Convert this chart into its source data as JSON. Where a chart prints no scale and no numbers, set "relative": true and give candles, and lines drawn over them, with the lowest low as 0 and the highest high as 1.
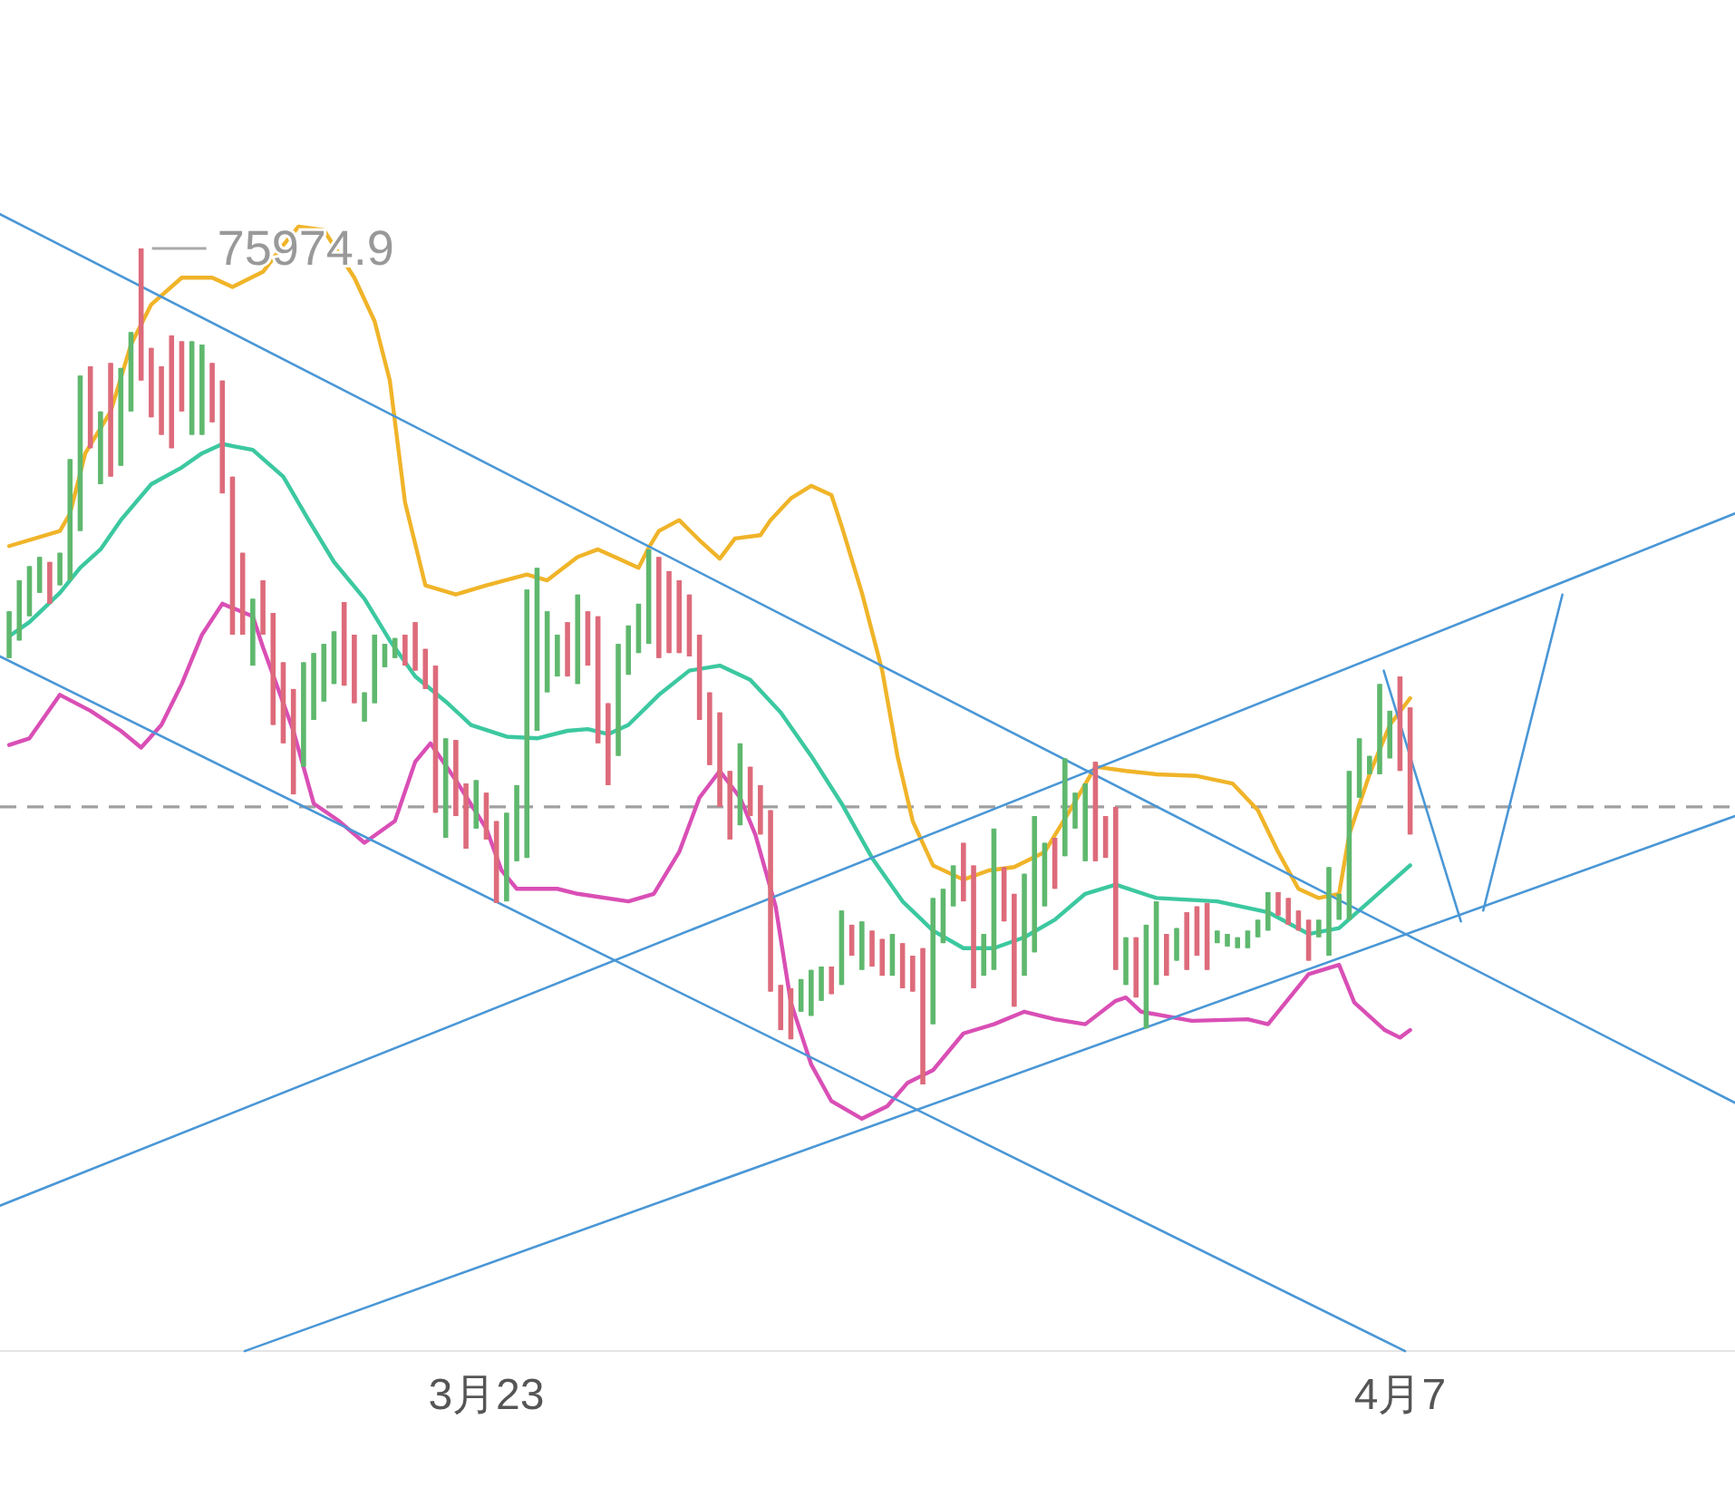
{
  "chart_data": {
    "type": "candlestick",
    "relative": true,
    "x": [
      "--03-15T04:00",
      "--03-15T08:00",
      "--03-15T12:00",
      "--03-15T16:00",
      "--03-15T20:00",
      "--03-16T00:00",
      "--03-16T04:00",
      "--03-16T08:00",
      "--03-16T12:00",
      "--03-16T16:00",
      "--03-16T20:00",
      "--03-17T00:00",
      "--03-17T04:00",
      "--03-17T08:00",
      "--03-17T12:00",
      "--03-17T16:00",
      "--03-17T20:00",
      "--03-18T00:00",
      "--03-18T04:00",
      "--03-18T08:00",
      "--03-18T12:00",
      "--03-18T16:00",
      "--03-18T20:00",
      "--03-19T00:00",
      "--03-19T04:00",
      "--03-19T08:00",
      "--03-19T12:00",
      "--03-19T16:00",
      "--03-19T20:00",
      "--03-20T00:00",
      "--03-20T04:00",
      "--03-20T08:00",
      "--03-20T12:00",
      "--03-20T16:00",
      "--03-20T20:00",
      "--03-21T00:00",
      "--03-21T04:00",
      "--03-21T08:00",
      "--03-21T12:00",
      "--03-21T16:00",
      "--03-21T20:00",
      "--03-22T00:00",
      "--03-22T04:00",
      "--03-22T08:00",
      "--03-22T12:00",
      "--03-22T16:00",
      "--03-22T20:00",
      "--03-23T00:00",
      "--03-23T04:00",
      "--03-23T08:00",
      "--03-23T12:00",
      "--03-23T16:00",
      "--03-23T20:00",
      "--03-24T00:00",
      "--03-24T04:00",
      "--03-24T08:00",
      "--03-24T12:00",
      "--03-24T16:00",
      "--03-24T20:00",
      "--03-25T00:00",
      "--03-25T04:00",
      "--03-25T08:00",
      "--03-25T12:00",
      "--03-25T16:00",
      "--03-25T20:00",
      "--03-26T00:00",
      "--03-26T04:00",
      "--03-26T08:00",
      "--03-26T12:00",
      "--03-26T16:00",
      "--03-26T20:00",
      "--03-27T00:00",
      "--03-27T04:00",
      "--03-27T08:00",
      "--03-27T12:00",
      "--03-27T16:00",
      "--03-27T20:00",
      "--03-28T00:00",
      "--03-28T04:00",
      "--03-28T08:00",
      "--03-28T12:00",
      "--03-28T16:00",
      "--03-28T20:00",
      "--03-29T00:00",
      "--03-29T04:00",
      "--03-29T08:00",
      "--03-29T12:00",
      "--03-29T16:00",
      "--03-29T20:00",
      "--03-30T00:00",
      "--03-30T04:00",
      "--03-30T08:00",
      "--03-30T12:00",
      "--03-30T16:00",
      "--03-30T20:00",
      "--03-31T00:00",
      "--03-31T04:00",
      "--03-31T08:00",
      "--03-31T12:00",
      "--03-31T16:00",
      "--03-31T20:00",
      "--04-01T00:00",
      "--04-01T04:00",
      "--04-01T08:00",
      "--04-01T12:00",
      "--04-01T16:00",
      "--04-01T20:00",
      "--04-02T00:00",
      "--04-02T04:00",
      "--04-02T08:00",
      "--04-02T12:00",
      "--04-02T16:00",
      "--04-02T20:00",
      "--04-03T00:00",
      "--04-03T04:00",
      "--04-03T08:00",
      "--04-03T12:00",
      "--04-03T16:00",
      "--04-03T20:00",
      "--04-04T00:00",
      "--04-04T04:00",
      "--04-04T08:00",
      "--04-04T12:00",
      "--04-04T16:00",
      "--04-04T20:00",
      "--04-05T00:00",
      "--04-05T04:00",
      "--04-05T08:00",
      "--04-05T12:00",
      "--04-05T16:00",
      "--04-05T20:00",
      "--04-06T00:00",
      "--04-06T04:00",
      "--04-06T08:00",
      "--04-06T12:00",
      "--04-06T16:00",
      "--04-06T20:00",
      "--04-07T00:00",
      "--04-07T04:00"
    ],
    "xlim": [
      "--03-15T00:24",
      "--04-12T12:00"
    ],
    "xticks": [
      {
        "value": "--03-23",
        "label": "3月23"
      },
      {
        "value": "--04-07",
        "label": "4月7"
      }
    ],
    "colors": [
      "#5fb86e",
      "#5fb86e",
      "#5fb86e",
      "#5fb86e",
      "#dd6b7b",
      "#5fb86e",
      "#5fb86e",
      "#5fb86e",
      "#dd6b7b",
      "#5fb86e",
      "#dd6b7b",
      "#5fb86e",
      "#5fb86e",
      "#dd6b7b",
      "#dd6b7b",
      "#dd6b7b",
      "#dd6b7b",
      "#dd6b7b",
      "#5fb86e",
      "#5fb86e",
      "#dd6b7b",
      "#dd6b7b",
      "#dd6b7b",
      "#dd6b7b",
      "#5fb86e",
      "#dd6b7b",
      "#dd6b7b",
      "#dd6b7b",
      "#dd6b7b",
      "#5fb86e",
      "#5fb86e",
      "#5fb86e",
      "#5fb86e",
      "#dd6b7b",
      "#dd6b7b",
      "#5fb86e",
      "#5fb86e",
      "#5fb86e",
      "#5fb86e",
      "#dd6b7b",
      "#dd6b7b",
      "#dd6b7b",
      "#dd6b7b",
      "#5fb86e",
      "#dd6b7b",
      "#dd6b7b",
      "#5fb86e",
      "#dd6b7b",
      "#dd6b7b",
      "#5fb86e",
      "#5fb86e",
      "#5fb86e",
      "#5fb86e",
      "#5fb86e",
      "#5fb86e",
      "#dd6b7b",
      "#5fb86e",
      "#dd6b7b",
      "#dd6b7b",
      "#dd6b7b",
      "#5fb86e",
      "#5fb86e",
      "#5fb86e",
      "#5fb86e",
      "#dd6b7b",
      "#dd6b7b",
      "#dd6b7b",
      "#dd6b7b",
      "#dd6b7b",
      "#dd6b7b",
      "#dd6b7b",
      "#dd6b7b",
      "#5fb86e",
      "#dd6b7b",
      "#dd6b7b",
      "#dd6b7b",
      "#dd6b7b",
      "#dd6b7b",
      "#5fb86e",
      "#5fb86e",
      "#5fb86e",
      "#dd6b7b",
      "#5fb86e",
      "#dd6b7b",
      "#5fb86e",
      "#dd6b7b",
      "#dd6b7b",
      "#5fb86e",
      "#dd6b7b",
      "#dd6b7b",
      "#dd6b7b",
      "#5fb86e",
      "#5fb86e",
      "#5fb86e",
      "#dd6b7b",
      "#dd6b7b",
      "#5fb86e",
      "#5fb86e",
      "#dd6b7b",
      "#dd6b7b",
      "#5fb86e",
      "#5fb86e",
      "#5fb86e",
      "#dd6b7b",
      "#5fb86e",
      "#5fb86e",
      "#5fb86e",
      "#dd6b7b",
      "#dd6b7b",
      "#dd6b7b",
      "#5fb86e",
      "#dd6b7b",
      "#5fb86e",
      "#5fb86e",
      "#dd6b7b",
      "#5fb86e",
      "#dd6b7b",
      "#dd6b7b",
      "#dd6b7b",
      "#5fb86e",
      "#5fb86e",
      "#5fb86e",
      "#5fb86e",
      "#5fb86e",
      "#5fb86e",
      "#dd6b7b",
      "#dd6b7b",
      "#dd6b7b",
      "#dd6b7b",
      "#5fb86e",
      "#5fb86e",
      "#5fb86e",
      "#5fb86e",
      "#5fb86e",
      "#5fb86e",
      "#5fb86e",
      "#5fb86e",
      "#dd6b7b",
      "#dd6b7b"
    ],
    "ohlc": [
      [
        0.51,
        0.566,
        0.51,
        0.566
      ],
      [
        0.531,
        0.603,
        0.531,
        0.603
      ],
      [
        0.56,
        0.62,
        0.56,
        0.62
      ],
      [
        0.588,
        0.631,
        0.588,
        0.631
      ],
      [
        0.625,
        0.625,
        0.575,
        0.575
      ],
      [
        0.597,
        0.636,
        0.597,
        0.636
      ],
      [
        0.603,
        0.748,
        0.603,
        0.748
      ],
      [
        0.662,
        0.848,
        0.662,
        0.848
      ],
      [
        0.859,
        0.859,
        0.761,
        0.761
      ],
      [
        0.718,
        0.805,
        0.718,
        0.805
      ],
      [
        0.863,
        0.863,
        0.727,
        0.727
      ],
      [
        0.74,
        0.857,
        0.74,
        0.857
      ],
      [
        0.805,
        0.9,
        0.805,
        0.9
      ],
      [
        1,
        1,
        0.842,
        0.842
      ],
      [
        0.881,
        0.881,
        0.798,
        0.798
      ],
      [
        0.859,
        0.859,
        0.777,
        0.777
      ],
      [
        0.896,
        0.896,
        0.761,
        0.761
      ],
      [
        0.889,
        0.889,
        0.805,
        0.805
      ],
      [
        0.777,
        0.889,
        0.777,
        0.889
      ],
      [
        0.777,
        0.885,
        0.777,
        0.885
      ],
      [
        0.863,
        0.863,
        0.792,
        0.792
      ],
      [
        0.842,
        0.842,
        0.707,
        0.707
      ],
      [
        0.727,
        0.727,
        0.538,
        0.538
      ],
      [
        0.636,
        0.636,
        0.538,
        0.538
      ],
      [
        0.501,
        0.581,
        0.501,
        0.581
      ],
      [
        0.603,
        0.603,
        0.538,
        0.538
      ],
      [
        0.564,
        0.564,
        0.43,
        0.43
      ],
      [
        0.505,
        0.505,
        0.408,
        0.408
      ],
      [
        0.473,
        0.473,
        0.347,
        0.347
      ],
      [
        0.38,
        0.505,
        0.38,
        0.505
      ],
      [
        0.436,
        0.516,
        0.436,
        0.516
      ],
      [
        0.458,
        0.527,
        0.458,
        0.527
      ],
      [
        0.479,
        0.542,
        0.479,
        0.542
      ],
      [
        0.577,
        0.577,
        0.477,
        0.477
      ],
      [
        0.538,
        0.538,
        0.456,
        0.456
      ],
      [
        0.434,
        0.469,
        0.434,
        0.469
      ],
      [
        0.456,
        0.538,
        0.456,
        0.538
      ],
      [
        0.499,
        0.527,
        0.499,
        0.527
      ],
      [
        0.51,
        0.534,
        0.51,
        0.534
      ],
      [
        0.538,
        0.538,
        0.501,
        0.501
      ],
      [
        0.553,
        0.553,
        0.495,
        0.495
      ],
      [
        0.521,
        0.521,
        0.473,
        0.473
      ],
      [
        0.501,
        0.501,
        0.325,
        0.325
      ],
      [
        0.295,
        0.414,
        0.295,
        0.414
      ],
      [
        0.412,
        0.412,
        0.321,
        0.321
      ],
      [
        0.36,
        0.36,
        0.282,
        0.282
      ],
      [
        0.306,
        0.364,
        0.306,
        0.364
      ],
      [
        0.349,
        0.349,
        0.293,
        0.293
      ],
      [
        0.315,
        0.315,
        0.217,
        0.217
      ],
      [
        0.219,
        0.325,
        0.219,
        0.325
      ],
      [
        0.267,
        0.358,
        0.267,
        0.358
      ],
      [
        0.271,
        0.592,
        0.271,
        0.592
      ],
      [
        0.423,
        0.618,
        0.423,
        0.618
      ],
      [
        0.469,
        0.566,
        0.469,
        0.566
      ],
      [
        0.488,
        0.538,
        0.488,
        0.538
      ],
      [
        0.553,
        0.553,
        0.488,
        0.488
      ],
      [
        0.479,
        0.586,
        0.479,
        0.586
      ],
      [
        0.566,
        0.566,
        0.501,
        0.501
      ],
      [
        0.56,
        0.56,
        0.408,
        0.408
      ],
      [
        0.456,
        0.456,
        0.358,
        0.358
      ],
      [
        0.393,
        0.527,
        0.393,
        0.527
      ],
      [
        0.49,
        0.549,
        0.49,
        0.549
      ],
      [
        0.516,
        0.575,
        0.516,
        0.575
      ],
      [
        0.527,
        0.64,
        0.527,
        0.64
      ],
      [
        0.631,
        0.631,
        0.51,
        0.51
      ],
      [
        0.614,
        0.614,
        0.516,
        0.516
      ],
      [
        0.603,
        0.603,
        0.516,
        0.516
      ],
      [
        0.586,
        0.586,
        0.512,
        0.512
      ],
      [
        0.538,
        0.538,
        0.436,
        0.436
      ],
      [
        0.469,
        0.469,
        0.382,
        0.382
      ],
      [
        0.445,
        0.445,
        0.332,
        0.332
      ],
      [
        0.375,
        0.375,
        0.293,
        0.293
      ],
      [
        0.31,
        0.408,
        0.31,
        0.408
      ],
      [
        0.38,
        0.38,
        0.321,
        0.321
      ],
      [
        0.358,
        0.358,
        0.299,
        0.299
      ],
      [
        0.328,
        0.328,
        0.111,
        0.111
      ],
      [
        0.119,
        0.119,
        0.065,
        0.065
      ],
      [
        0.115,
        0.115,
        0.054,
        0.054
      ],
      [
        0.087,
        0.126,
        0.087,
        0.126
      ],
      [
        0.082,
        0.137,
        0.082,
        0.137
      ],
      [
        0.1,
        0.141,
        0.1,
        0.141
      ],
      [
        0.141,
        0.141,
        0.108,
        0.108
      ],
      [
        0.119,
        0.208,
        0.119,
        0.208
      ],
      [
        0.191,
        0.191,
        0.154,
        0.154
      ],
      [
        0.137,
        0.195,
        0.137,
        0.195
      ],
      [
        0.184,
        0.184,
        0.141,
        0.141
      ],
      [
        0.174,
        0.174,
        0.13,
        0.13
      ],
      [
        0.13,
        0.18,
        0.13,
        0.18
      ],
      [
        0.169,
        0.169,
        0.115,
        0.115
      ],
      [
        0.154,
        0.154,
        0.111,
        0.111
      ],
      [
        0.163,
        0.163,
        0,
        0
      ],
      [
        0.072,
        0.223,
        0.072,
        0.223
      ],
      [
        0.169,
        0.234,
        0.169,
        0.234
      ],
      [
        0.213,
        0.262,
        0.213,
        0.262
      ],
      [
        0.289,
        0.289,
        0.219,
        0.219
      ],
      [
        0.262,
        0.262,
        0.115,
        0.115
      ],
      [
        0.13,
        0.18,
        0.13,
        0.18
      ],
      [
        0.137,
        0.306,
        0.137,
        0.306
      ],
      [
        0.26,
        0.26,
        0.195,
        0.195
      ],
      [
        0.228,
        0.228,
        0.093,
        0.093
      ],
      [
        0.13,
        0.252,
        0.13,
        0.252
      ],
      [
        0.158,
        0.321,
        0.158,
        0.321
      ],
      [
        0.213,
        0.289,
        0.213,
        0.289
      ],
      [
        0.295,
        0.295,
        0.234,
        0.234
      ],
      [
        0.273,
        0.39,
        0.273,
        0.39
      ],
      [
        0.306,
        0.349,
        0.306,
        0.349
      ],
      [
        0.267,
        0.36,
        0.267,
        0.36
      ],
      [
        0.386,
        0.386,
        0.267,
        0.267
      ],
      [
        0.321,
        0.321,
        0.271,
        0.271
      ],
      [
        0.332,
        0.332,
        0.137,
        0.137
      ],
      [
        0.119,
        0.176,
        0.119,
        0.176
      ],
      [
        0.176,
        0.176,
        0.104,
        0.104
      ],
      [
        0.067,
        0.191,
        0.067,
        0.191
      ],
      [
        0.119,
        0.219,
        0.119,
        0.219
      ],
      [
        0.18,
        0.18,
        0.13,
        0.13
      ],
      [
        0.148,
        0.187,
        0.148,
        0.187
      ],
      [
        0.206,
        0.206,
        0.137,
        0.137
      ],
      [
        0.213,
        0.213,
        0.154,
        0.154
      ],
      [
        0.217,
        0.217,
        0.137,
        0.137
      ],
      [
        0.169,
        0.184,
        0.169,
        0.184
      ],
      [
        0.165,
        0.18,
        0.165,
        0.18
      ],
      [
        0.163,
        0.176,
        0.163,
        0.176
      ],
      [
        0.163,
        0.184,
        0.163,
        0.184
      ],
      [
        0.176,
        0.197,
        0.176,
        0.197
      ],
      [
        0.184,
        0.23,
        0.184,
        0.23
      ],
      [
        0.23,
        0.23,
        0.202,
        0.202
      ],
      [
        0.223,
        0.223,
        0.191,
        0.191
      ],
      [
        0.208,
        0.208,
        0.184,
        0.184
      ],
      [
        0.197,
        0.197,
        0.148,
        0.148
      ],
      [
        0.176,
        0.197,
        0.176,
        0.197
      ],
      [
        0.154,
        0.26,
        0.154,
        0.26
      ],
      [
        0.197,
        0.228,
        0.197,
        0.228
      ],
      [
        0.197,
        0.375,
        0.197,
        0.375
      ],
      [
        0.343,
        0.414,
        0.343,
        0.414
      ],
      [
        0.371,
        0.393,
        0.371,
        0.393
      ],
      [
        0.371,
        0.479,
        0.371,
        0.479
      ],
      [
        0.39,
        0.447,
        0.39,
        0.447
      ],
      [
        0.488,
        0.488,
        0.375,
        0.375
      ],
      [
        0.451,
        0.451,
        0.299,
        0.299
      ]
    ],
    "series": [
      {
        "type": "line",
        "color": "#f0b429",
        "x": [
          "--03-15T04:00",
          "--03-16T00:00",
          "--03-16T04:00",
          "--03-16T10:00",
          "--03-16T20:00",
          "--03-17T04:00",
          "--03-17T12:00",
          "--03-18T00:00",
          "--03-18T12:00",
          "--03-18T20:00",
          "--03-19T08:00",
          "--03-19T16:00",
          "--03-19T22:00",
          "--03-20T08:00",
          "--03-20T20:00",
          "--03-21T04:00",
          "--03-21T10:00",
          "--03-21T16:00",
          "--03-22T00:00",
          "--03-22T12:00",
          "--03-23T00:00",
          "--03-23T16:00",
          "--03-24T00:00",
          "--03-24T12:00",
          "--03-24T20:00",
          "--03-25T04:00",
          "--03-25T12:00",
          "--03-25T16:00",
          "--03-25T20:00",
          "--03-26T04:00",
          "--03-26T12:00",
          "--03-26T20:00",
          "--03-27T02:00",
          "--03-27T12:00",
          "--03-27T16:00",
          "--03-28T00:00",
          "--03-28T08:00",
          "--03-28T16:00",
          "--03-28T20:00",
          "--03-29T04:00",
          "--03-29T12:00",
          "--03-29T18:00",
          "--03-30T00:00",
          "--03-30T08:00",
          "--03-30T20:00",
          "--03-31T06:00",
          "--03-31T16:00",
          "--04-01T04:00",
          "--04-01T14:00",
          "--04-02T00:00",
          "--04-02T12:00",
          "--04-03T00:00",
          "--04-03T16:00",
          "--04-04T06:00",
          "--04-04T16:00",
          "--04-05T00:00",
          "--04-05T08:00",
          "--04-05T16:00",
          "--04-06T00:00",
          "--04-06T04:00",
          "--04-06T12:00",
          "--04-06T20:00",
          "--04-07T04:00"
        ],
        "values": [
          0.644,
          0.662,
          0.683,
          0.755,
          0.805,
          0.885,
          0.933,
          0.965,
          0.965,
          0.954,
          0.972,
          1.004,
          1.026,
          1.022,
          0.965,
          0.913,
          0.842,
          0.696,
          0.597,
          0.586,
          0.597,
          0.61,
          0.603,
          0.631,
          0.64,
          0.629,
          0.618,
          0.642,
          0.662,
          0.675,
          0.651,
          0.629,
          0.653,
          0.657,
          0.675,
          0.701,
          0.716,
          0.705,
          0.668,
          0.588,
          0.495,
          0.393,
          0.315,
          0.262,
          0.245,
          0.256,
          0.26,
          0.278,
          0.328,
          0.38,
          0.375,
          0.371,
          0.369,
          0.36,
          0.328,
          0.278,
          0.234,
          0.223,
          0.228,
          0.299,
          0.371,
          0.43,
          0.462
        ]
      },
      {
        "type": "line",
        "color": "#3cc8a0",
        "x": [
          "--03-15T04:00",
          "--03-15T12:00",
          "--03-16T00:00",
          "--03-16T08:00",
          "--03-16T16:00",
          "--03-17T00:00",
          "--03-17T12:00",
          "--03-18T00:00",
          "--03-18T08:00",
          "--03-18T16:00",
          "--03-19T04:00",
          "--03-19T16:00",
          "--03-20T02:00",
          "--03-20T12:00",
          "--03-21T00:00",
          "--03-21T10:00",
          "--03-21T20:00",
          "--03-22T08:00",
          "--03-22T18:00",
          "--03-23T08:00",
          "--03-23T20:00",
          "--03-24T08:00",
          "--03-24T16:00",
          "--03-25T00:00",
          "--03-25T08:00",
          "--03-25T20:00",
          "--03-26T08:00",
          "--03-26T20:00",
          "--03-27T08:00",
          "--03-27T20:00",
          "--03-28T08:00",
          "--03-28T20:00",
          "--03-29T08:00",
          "--03-29T20:00",
          "--03-30T08:00",
          "--03-30T20:00",
          "--03-31T08:00",
          "--03-31T20:00",
          "--04-01T08:00",
          "--04-01T20:00",
          "--04-02T08:00",
          "--04-03T00:00",
          "--04-04T00:00",
          "--04-04T20:00",
          "--04-05T12:00",
          "--04-06T00:00",
          "--04-06T12:00",
          "--04-07T04:00"
        ],
        "values": [
          0.536,
          0.553,
          0.588,
          0.618,
          0.64,
          0.675,
          0.718,
          0.738,
          0.755,
          0.766,
          0.759,
          0.727,
          0.675,
          0.625,
          0.581,
          0.531,
          0.488,
          0.458,
          0.43,
          0.416,
          0.414,
          0.423,
          0.425,
          0.419,
          0.43,
          0.466,
          0.495,
          0.501,
          0.484,
          0.445,
          0.393,
          0.336,
          0.271,
          0.219,
          0.184,
          0.163,
          0.163,
          0.176,
          0.197,
          0.228,
          0.239,
          0.223,
          0.219,
          0.206,
          0.18,
          0.187,
          0.219,
          0.262
        ]
      },
      {
        "type": "line",
        "color": "#d94fb5",
        "x": [
          "--03-15T04:00",
          "--03-15T12:00",
          "--03-16T00:00",
          "--03-16T12:00",
          "--03-17T00:00",
          "--03-17T08:00",
          "--03-17T16:00",
          "--03-18T00:00",
          "--03-18T08:00",
          "--03-18T16:00",
          "--03-19T04:00",
          "--03-19T08:00",
          "--03-19T20:00",
          "--03-20T04:00",
          "--03-20T14:00",
          "--03-21T00:00",
          "--03-21T12:00",
          "--03-21T20:00",
          "--03-22T02:00",
          "--03-22T12:00",
          "--03-23T00:00",
          "--03-23T06:00",
          "--03-23T12:00",
          "--03-24T04:00",
          "--03-24T12:00",
          "--03-25T08:00",
          "--03-25T18:00",
          "--03-26T04:00",
          "--03-26T12:00",
          "--03-26T20:00",
          "--03-27T04:00",
          "--03-27T10:00",
          "--03-27T18:00",
          "--03-28T00:00",
          "--03-28T08:00",
          "--03-28T16:00",
          "--03-29T04:00",
          "--03-29T14:00",
          "--03-29T22:00",
          "--03-30T08:00",
          "--03-30T20:00",
          "--03-31T08:00",
          "--03-31T20:00",
          "--04-01T08:00",
          "--04-01T20:00",
          "--04-02T08:00",
          "--04-02T12:00",
          "--04-02T18:00",
          "--04-03T14:00",
          "--04-04T12:00",
          "--04-04T20:00",
          "--04-05T12:00",
          "--04-06T00:00",
          "--04-06T06:00",
          "--04-06T18:00",
          "--04-07T00:00",
          "--04-07T04:00"
        ],
        "values": [
          0.406,
          0.414,
          0.466,
          0.447,
          0.423,
          0.403,
          0.43,
          0.479,
          0.538,
          0.575,
          0.56,
          0.523,
          0.423,
          0.336,
          0.315,
          0.289,
          0.315,
          0.386,
          0.408,
          0.364,
          0.306,
          0.256,
          0.234,
          0.234,
          0.228,
          0.219,
          0.228,
          0.278,
          0.343,
          0.375,
          0.343,
          0.299,
          0.213,
          0.098,
          0.024,
          -0.02,
          -0.041,
          -0.026,
          0.002,
          0.017,
          0.061,
          0.072,
          0.087,
          0.078,
          0.072,
          0.1,
          0.104,
          0.087,
          0.076,
          0.078,
          0.072,
          0.132,
          0.143,
          0.098,
          0.065,
          0.056,
          0.065
        ]
      },
      {
        "type": "line",
        "color": "#4a97d6",
        "x": [
          "--03-15T00:24",
          "--04-12T12:00"
        ],
        "values": [
          1.041,
          -0.022
        ]
      },
      {
        "type": "line",
        "color": "#4a97d6",
        "x": [
          "--03-15T00:24",
          "--04-07T02:00"
        ],
        "values": [
          0.512,
          -0.319
        ]
      },
      {
        "type": "line",
        "color": "#4a97d6",
        "x": [
          "--03-15T00:24",
          "--04-12T12:00"
        ],
        "values": [
          -0.145,
          0.683
        ]
      },
      {
        "type": "line",
        "color": "#4a97d6",
        "x": [
          "--03-19T00:48",
          "--04-12T12:00"
        ],
        "values": [
          -0.319,
          0.321
        ]
      },
      {
        "type": "line",
        "color": "#4a97d6",
        "x": [
          "--04-06T17:36",
          "--04-08T00:00"
        ],
        "values": [
          0.495,
          0.195
        ]
      },
      {
        "type": "line",
        "color": "#4a97d6",
        "x": [
          "--04-08T08:48",
          "--04-09T16:00"
        ],
        "values": [
          0.208,
          0.586
        ]
      }
    ],
    "ref_lines": [
      {
        "axis": "y",
        "value": 0.332,
        "color": "#a0a0a0",
        "line_style": "dashed"
      }
    ],
    "annotations": [
      "75974.9"
    ]
  }
}
